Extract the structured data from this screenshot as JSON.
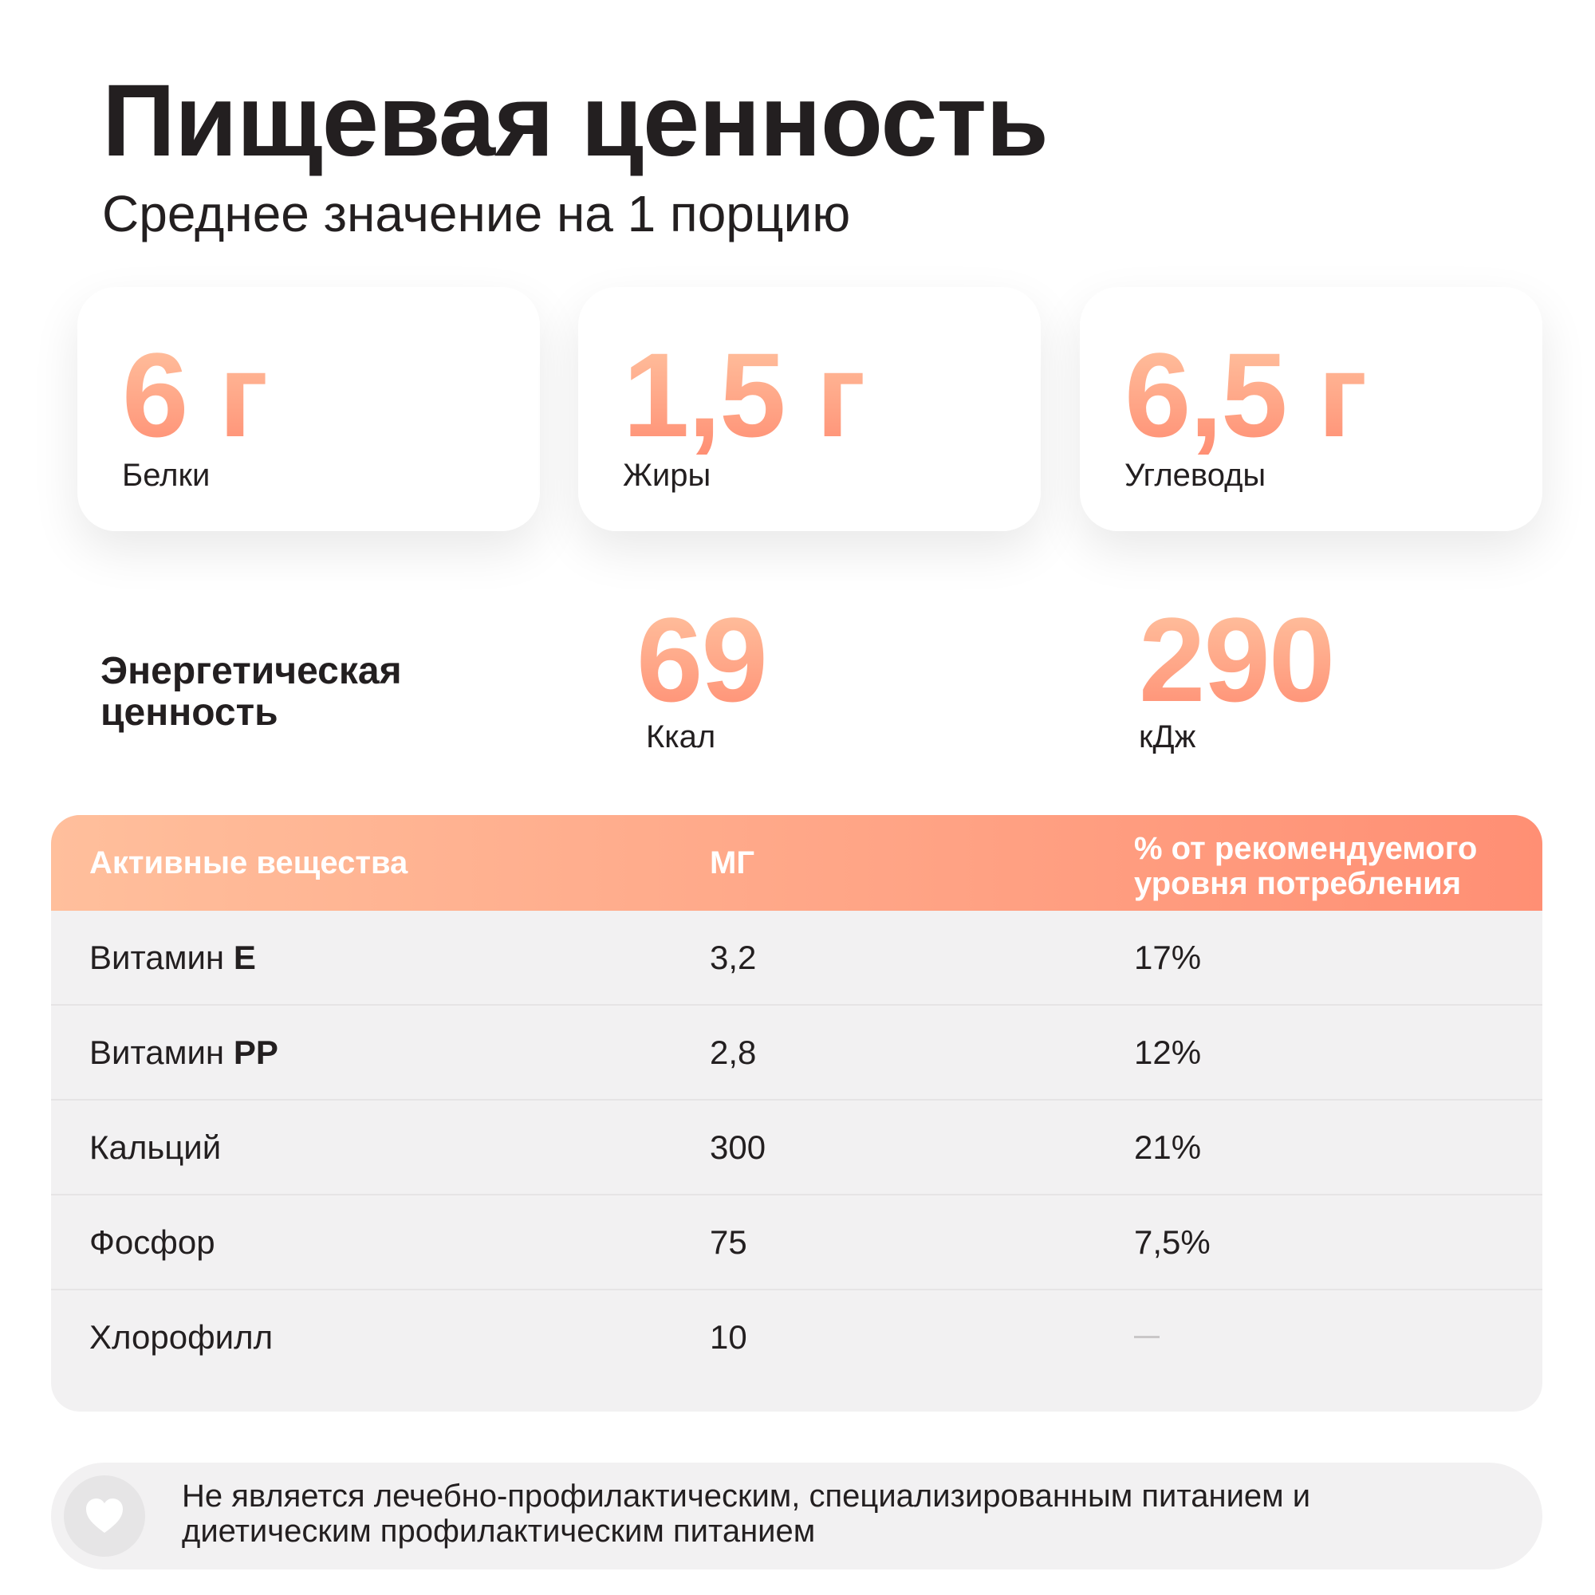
{
  "header": {
    "title": "Пищевая ценность",
    "subtitle": "Среднее значение на 1 порцию"
  },
  "macros": [
    {
      "value": "6 г",
      "label": "Белки"
    },
    {
      "value": "1,5 г",
      "label": "Жиры"
    },
    {
      "value": "6,5 г",
      "label": "Углеводы"
    }
  ],
  "energy": {
    "label": "Энергетическая ценность",
    "kcal_value": "69",
    "kcal_unit": "Ккал",
    "kj_value": "290",
    "kj_unit": "кДж"
  },
  "table": {
    "headers": [
      "Активные вещества",
      "МГ",
      "% от рекомендуемого уровня потребления"
    ],
    "rows": [
      {
        "prefix": "Витамин",
        "bold": "E",
        "mg": "3,2",
        "percent": "17%"
      },
      {
        "prefix": "Витамин",
        "bold": "PP",
        "mg": "2,8",
        "percent": "12%"
      },
      {
        "prefix": "Кальций",
        "bold": "",
        "mg": "300",
        "percent": "21%"
      },
      {
        "prefix": "Фосфор",
        "bold": "",
        "mg": "75",
        "percent": "7,5%"
      },
      {
        "prefix": "Хлорофилл",
        "bold": "",
        "mg": "10",
        "percent": ""
      }
    ]
  },
  "note": {
    "icon": "heart-icon",
    "text": "Не является лечебно-профилактическим, специализированным питанием и диетическим профилактическим питанием"
  },
  "colors": {
    "accent_light": "#ffc3a0",
    "accent_dark": "#ff8f74",
    "text": "#231f20",
    "panel": "#f2f1f2"
  }
}
